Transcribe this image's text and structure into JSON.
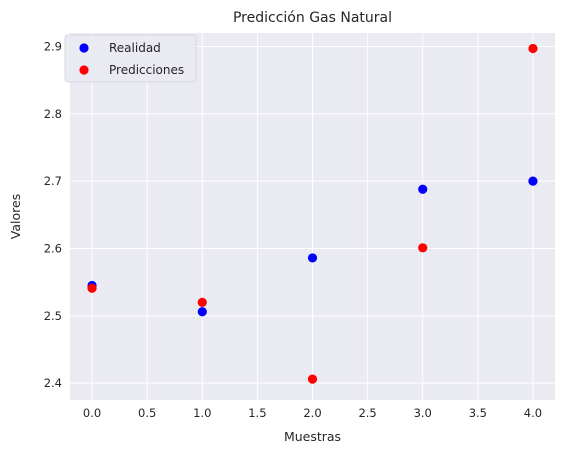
{
  "chart_data": {
    "type": "scatter",
    "title": "Predicción Gas Natural",
    "xlabel": "Muestras",
    "ylabel": "Valores",
    "xlim": [
      -0.2,
      4.2
    ],
    "ylim": [
      2.375,
      2.92
    ],
    "xticks": [
      0.0,
      0.5,
      1.0,
      1.5,
      2.0,
      2.5,
      3.0,
      3.5,
      4.0
    ],
    "xtick_labels": [
      "0.0",
      "0.5",
      "1.0",
      "1.5",
      "2.0",
      "2.5",
      "3.0",
      "3.5",
      "4.0"
    ],
    "yticks": [
      2.4,
      2.5,
      2.6,
      2.7,
      2.8,
      2.9
    ],
    "ytick_labels": [
      "2.4",
      "2.5",
      "2.6",
      "2.7",
      "2.8",
      "2.9"
    ],
    "grid": true,
    "legend_position": "top-left",
    "background_color": "#eaeaf2",
    "grid_color": "#ffffff",
    "series": [
      {
        "name": "Realidad",
        "color": "#0000ff",
        "x": [
          0,
          1,
          2,
          3,
          4
        ],
        "y": [
          2.545,
          2.506,
          2.586,
          2.688,
          2.7
        ]
      },
      {
        "name": "Predicciones",
        "color": "#ff0000",
        "x": [
          0,
          1,
          2,
          3,
          4
        ],
        "y": [
          2.541,
          2.52,
          2.406,
          2.601,
          2.897
        ]
      }
    ]
  }
}
